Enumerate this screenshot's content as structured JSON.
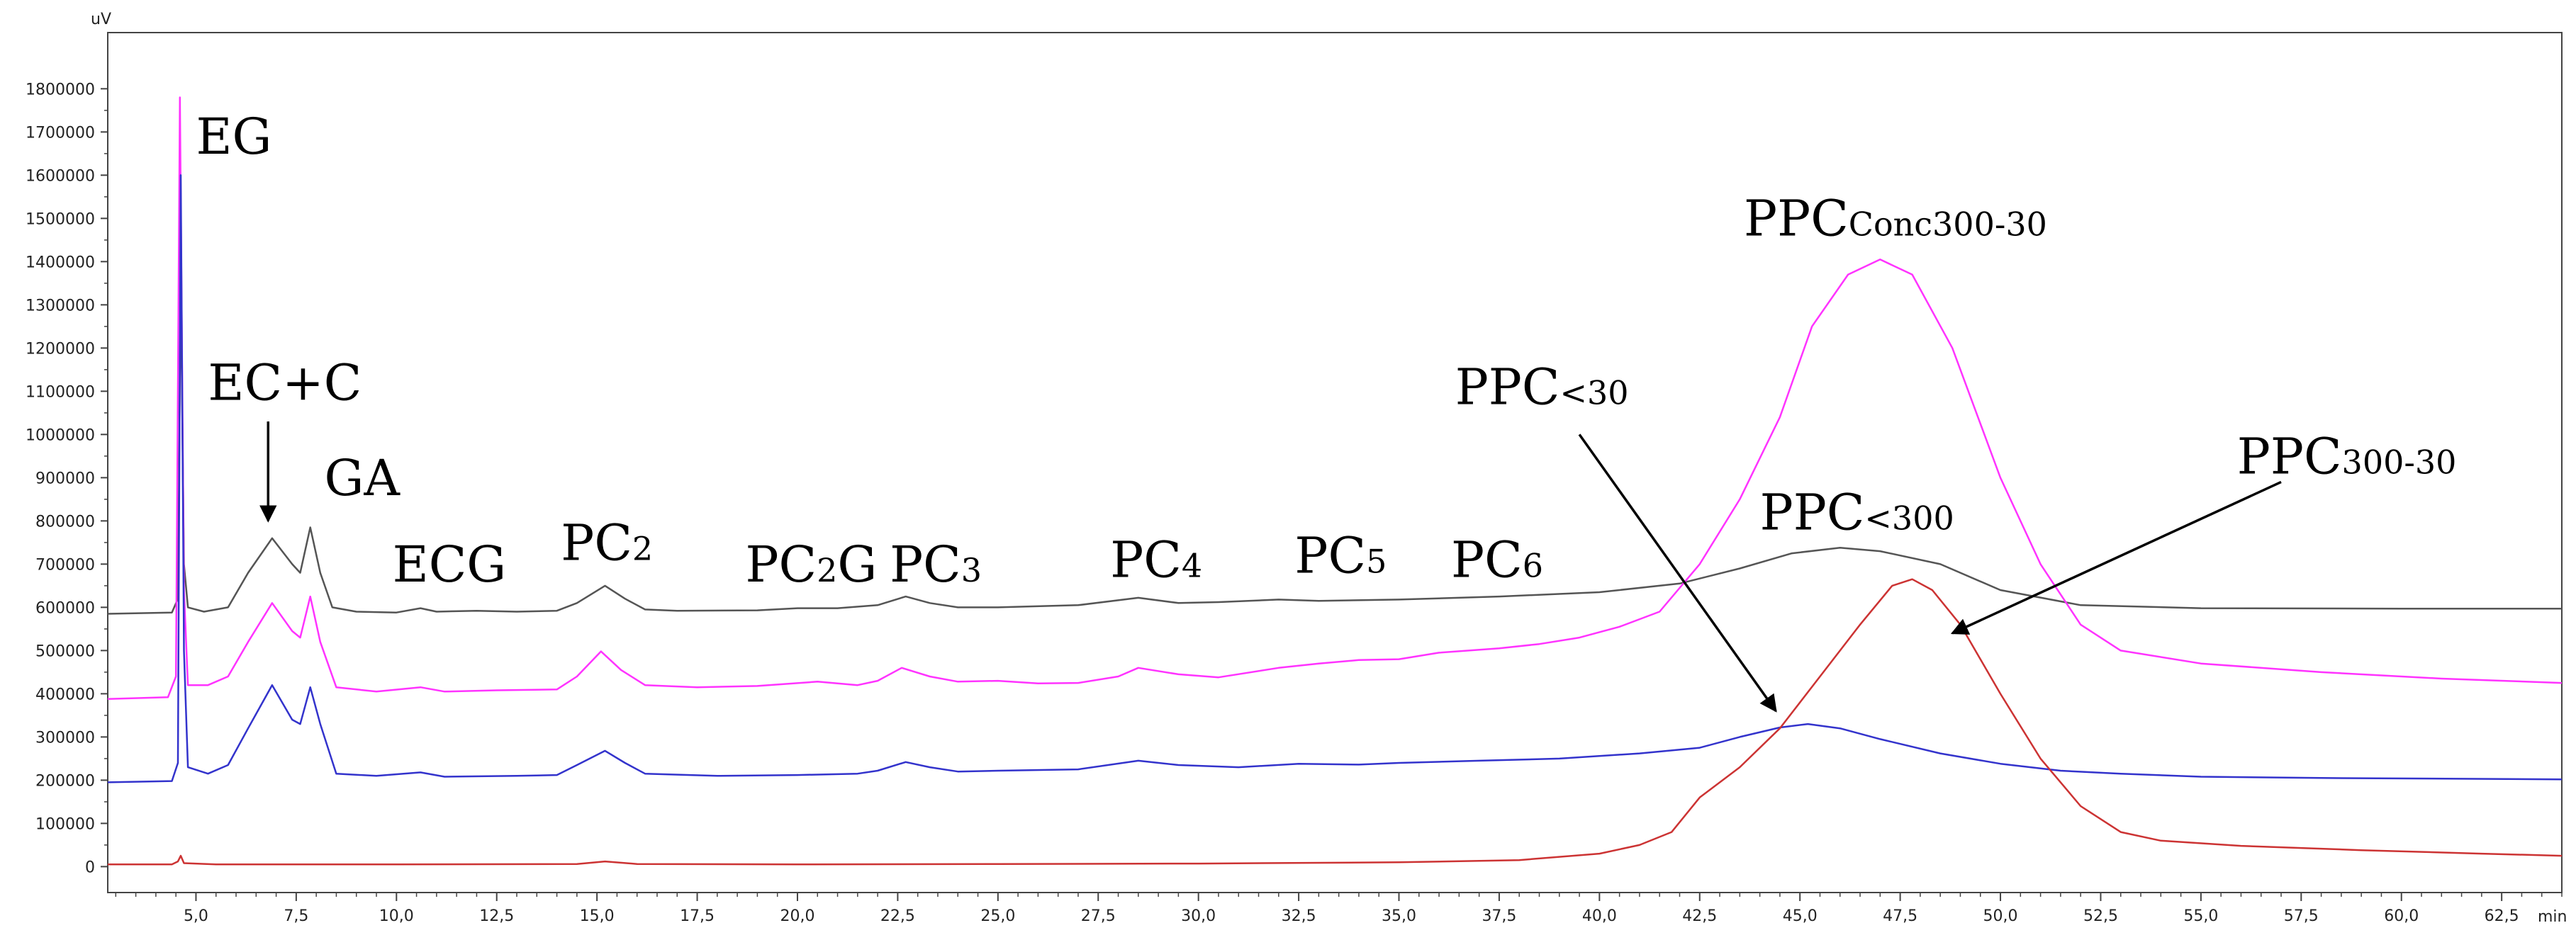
{
  "chart_data": {
    "type": "line",
    "title": "",
    "xlabel": "",
    "ylabel": "",
    "x_unit": "min",
    "y_unit": "uV",
    "xlim": [
      2.8,
      64
    ],
    "ylim": [
      -60000,
      1930000
    ],
    "x_ticks": [
      5.0,
      7.5,
      10.0,
      12.5,
      15.0,
      17.5,
      20.0,
      22.5,
      25.0,
      27.5,
      30.0,
      32.5,
      35.0,
      37.5,
      40.0,
      42.5,
      45.0,
      47.5,
      50.0,
      52.5,
      55.0,
      57.5,
      60.0,
      62.5
    ],
    "x_tick_labels": [
      "5,0",
      "7,5",
      "10,0",
      "12,5",
      "15,0",
      "17,5",
      "20,0",
      "22,5",
      "25,0",
      "27,5",
      "30,0",
      "32,5",
      "35,0",
      "37,5",
      "40,0",
      "42,5",
      "45,0",
      "47,5",
      "50,0",
      "52,5",
      "55,0",
      "57,5",
      "60,0",
      "62,5"
    ],
    "y_ticks": [
      0,
      100000,
      200000,
      300000,
      400000,
      500000,
      600000,
      700000,
      800000,
      900000,
      1000000,
      1100000,
      1200000,
      1300000,
      1400000,
      1500000,
      1600000,
      1700000,
      1800000
    ],
    "y_tick_labels": [
      "0",
      "100000",
      "200000",
      "300000",
      "400000",
      "500000",
      "600000",
      "700000",
      "800000",
      "900000",
      "1000000",
      "1100000",
      "1200000",
      "1300000",
      "1400000",
      "1500000",
      "1600000",
      "1700000",
      "1800000"
    ],
    "grid": false,
    "legend": "none",
    "series": [
      {
        "color": "#555555",
        "points": [
          [
            2.8,
            585000
          ],
          [
            4.4,
            588000
          ],
          [
            4.55,
            620000
          ],
          [
            4.62,
            1360000
          ],
          [
            4.7,
            700000
          ],
          [
            4.8,
            600000
          ],
          [
            5.2,
            590000
          ],
          [
            5.8,
            600000
          ],
          [
            6.3,
            680000
          ],
          [
            6.9,
            760000
          ],
          [
            7.4,
            700000
          ],
          [
            7.6,
            680000
          ],
          [
            7.85,
            785000
          ],
          [
            8.1,
            680000
          ],
          [
            8.4,
            600000
          ],
          [
            9.0,
            590000
          ],
          [
            10.0,
            588000
          ],
          [
            10.6,
            598000
          ],
          [
            11.0,
            590000
          ],
          [
            12.0,
            592000
          ],
          [
            13.0,
            590000
          ],
          [
            14.0,
            592000
          ],
          [
            14.5,
            610000
          ],
          [
            15.2,
            650000
          ],
          [
            15.7,
            620000
          ],
          [
            16.2,
            595000
          ],
          [
            17.0,
            592000
          ],
          [
            19.0,
            593000
          ],
          [
            20.0,
            598000
          ],
          [
            21.0,
            598000
          ],
          [
            22.0,
            605000
          ],
          [
            22.7,
            625000
          ],
          [
            23.3,
            610000
          ],
          [
            24.0,
            600000
          ],
          [
            25.0,
            600000
          ],
          [
            27.0,
            605000
          ],
          [
            28.5,
            622000
          ],
          [
            29.5,
            610000
          ],
          [
            30.5,
            612000
          ],
          [
            32.0,
            618000
          ],
          [
            33.0,
            615000
          ],
          [
            35.0,
            618000
          ],
          [
            37.5,
            625000
          ],
          [
            40.0,
            635000
          ],
          [
            42.0,
            655000
          ],
          [
            43.5,
            690000
          ],
          [
            44.8,
            725000
          ],
          [
            46.0,
            738000
          ],
          [
            47.0,
            730000
          ],
          [
            48.5,
            700000
          ],
          [
            50.0,
            640000
          ],
          [
            52.0,
            605000
          ],
          [
            55.0,
            598000
          ],
          [
            60.0,
            597000
          ],
          [
            64.0,
            597000
          ]
        ]
      },
      {
        "color": "#ff33ff",
        "points": [
          [
            2.8,
            388000
          ],
          [
            4.3,
            392000
          ],
          [
            4.5,
            440000
          ],
          [
            4.6,
            1780000
          ],
          [
            4.7,
            640000
          ],
          [
            4.8,
            420000
          ],
          [
            5.3,
            420000
          ],
          [
            5.8,
            440000
          ],
          [
            6.3,
            520000
          ],
          [
            6.9,
            610000
          ],
          [
            7.4,
            545000
          ],
          [
            7.6,
            530000
          ],
          [
            7.85,
            625000
          ],
          [
            8.1,
            520000
          ],
          [
            8.5,
            415000
          ],
          [
            9.5,
            405000
          ],
          [
            10.6,
            415000
          ],
          [
            11.2,
            405000
          ],
          [
            12.5,
            408000
          ],
          [
            14.0,
            410000
          ],
          [
            14.5,
            440000
          ],
          [
            15.1,
            498000
          ],
          [
            15.6,
            455000
          ],
          [
            16.2,
            420000
          ],
          [
            17.5,
            415000
          ],
          [
            19.0,
            418000
          ],
          [
            20.5,
            428000
          ],
          [
            21.5,
            420000
          ],
          [
            22.0,
            430000
          ],
          [
            22.6,
            460000
          ],
          [
            23.3,
            440000
          ],
          [
            24.0,
            428000
          ],
          [
            25.0,
            430000
          ],
          [
            26.0,
            424000
          ],
          [
            27.0,
            425000
          ],
          [
            28.0,
            440000
          ],
          [
            28.5,
            460000
          ],
          [
            29.5,
            445000
          ],
          [
            30.5,
            438000
          ],
          [
            32.0,
            460000
          ],
          [
            33.0,
            470000
          ],
          [
            34.0,
            478000
          ],
          [
            35.0,
            480000
          ],
          [
            36.0,
            495000
          ],
          [
            37.5,
            505000
          ],
          [
            38.5,
            515000
          ],
          [
            39.5,
            530000
          ],
          [
            40.5,
            555000
          ],
          [
            41.5,
            590000
          ],
          [
            42.5,
            700000
          ],
          [
            43.5,
            850000
          ],
          [
            44.5,
            1040000
          ],
          [
            45.3,
            1250000
          ],
          [
            46.2,
            1370000
          ],
          [
            47.0,
            1405000
          ],
          [
            47.8,
            1370000
          ],
          [
            48.8,
            1200000
          ],
          [
            50.0,
            900000
          ],
          [
            51.0,
            700000
          ],
          [
            52.0,
            560000
          ],
          [
            53.0,
            500000
          ],
          [
            55.0,
            470000
          ],
          [
            58.0,
            450000
          ],
          [
            61.0,
            435000
          ],
          [
            64.0,
            425000
          ]
        ]
      },
      {
        "color": "#3333cc",
        "points": [
          [
            2.8,
            195000
          ],
          [
            4.4,
            198000
          ],
          [
            4.55,
            240000
          ],
          [
            4.62,
            1600000
          ],
          [
            4.7,
            500000
          ],
          [
            4.8,
            230000
          ],
          [
            5.3,
            215000
          ],
          [
            5.8,
            235000
          ],
          [
            6.3,
            320000
          ],
          [
            6.9,
            420000
          ],
          [
            7.4,
            340000
          ],
          [
            7.6,
            330000
          ],
          [
            7.85,
            415000
          ],
          [
            8.1,
            330000
          ],
          [
            8.5,
            215000
          ],
          [
            9.5,
            210000
          ],
          [
            10.6,
            218000
          ],
          [
            11.2,
            208000
          ],
          [
            13.0,
            210000
          ],
          [
            14.0,
            212000
          ],
          [
            14.5,
            235000
          ],
          [
            15.2,
            268000
          ],
          [
            15.7,
            240000
          ],
          [
            16.2,
            215000
          ],
          [
            18.0,
            210000
          ],
          [
            20.0,
            212000
          ],
          [
            21.5,
            215000
          ],
          [
            22.0,
            222000
          ],
          [
            22.7,
            242000
          ],
          [
            23.3,
            230000
          ],
          [
            24.0,
            220000
          ],
          [
            25.0,
            222000
          ],
          [
            27.0,
            225000
          ],
          [
            28.5,
            245000
          ],
          [
            29.5,
            235000
          ],
          [
            31.0,
            230000
          ],
          [
            32.5,
            238000
          ],
          [
            34.0,
            236000
          ],
          [
            35.0,
            240000
          ],
          [
            37.0,
            245000
          ],
          [
            39.0,
            250000
          ],
          [
            41.0,
            262000
          ],
          [
            42.5,
            275000
          ],
          [
            43.5,
            300000
          ],
          [
            44.5,
            322000
          ],
          [
            45.2,
            330000
          ],
          [
            46.0,
            320000
          ],
          [
            47.0,
            295000
          ],
          [
            48.5,
            262000
          ],
          [
            50.0,
            238000
          ],
          [
            51.5,
            222000
          ],
          [
            53.0,
            215000
          ],
          [
            55.0,
            208000
          ],
          [
            58.0,
            205000
          ],
          [
            64.0,
            202000
          ]
        ]
      },
      {
        "color": "#cc3333",
        "points": [
          [
            2.8,
            5000
          ],
          [
            4.4,
            5000
          ],
          [
            4.55,
            12000
          ],
          [
            4.62,
            25000
          ],
          [
            4.7,
            8000
          ],
          [
            5.5,
            5000
          ],
          [
            10.0,
            5000
          ],
          [
            14.5,
            6000
          ],
          [
            15.2,
            12000
          ],
          [
            16.0,
            6000
          ],
          [
            20.0,
            5000
          ],
          [
            25.0,
            6000
          ],
          [
            30.0,
            7000
          ],
          [
            35.0,
            10000
          ],
          [
            38.0,
            15000
          ],
          [
            40.0,
            30000
          ],
          [
            41.0,
            50000
          ],
          [
            41.8,
            80000
          ],
          [
            42.5,
            160000
          ],
          [
            43.5,
            230000
          ],
          [
            44.5,
            320000
          ],
          [
            45.5,
            440000
          ],
          [
            46.5,
            560000
          ],
          [
            47.3,
            650000
          ],
          [
            47.8,
            665000
          ],
          [
            48.3,
            640000
          ],
          [
            49.0,
            560000
          ],
          [
            50.0,
            400000
          ],
          [
            51.0,
            250000
          ],
          [
            52.0,
            140000
          ],
          [
            53.0,
            80000
          ],
          [
            54.0,
            60000
          ],
          [
            56.0,
            48000
          ],
          [
            59.0,
            38000
          ],
          [
            62.0,
            30000
          ],
          [
            64.0,
            25000
          ]
        ]
      }
    ],
    "annotations": [
      {
        "text": "EG",
        "sub": "",
        "x": 5.0,
        "y": 1650000
      },
      {
        "text": "EC+C",
        "sub": "",
        "x": 5.3,
        "y": 1080000
      },
      {
        "text": "GA",
        "sub": "",
        "x": 8.2,
        "y": 860000
      },
      {
        "text": "ECG",
        "sub": "",
        "x": 9.9,
        "y": 660000
      },
      {
        "text": "PC",
        "sub": "2",
        "x": 14.1,
        "y": 710000
      },
      {
        "text": "PC",
        "sub": "2",
        "tail": "G",
        "x": 18.7,
        "y": 660000
      },
      {
        "text": "PC",
        "sub": "3",
        "x": 22.3,
        "y": 660000
      },
      {
        "text": "PC",
        "sub": "4",
        "x": 27.8,
        "y": 670000
      },
      {
        "text": "PC",
        "sub": "5",
        "x": 32.4,
        "y": 680000
      },
      {
        "text": "PC",
        "sub": "6",
        "x": 36.3,
        "y": 670000
      },
      {
        "text": "PPC",
        "sub": "Conc300-30",
        "x": 43.6,
        "y": 1460000
      },
      {
        "text": "PPC",
        "sub": "<30",
        "x": 36.4,
        "y": 1070000
      },
      {
        "text": "PPC",
        "sub": "<300",
        "x": 44.0,
        "y": 780000
      },
      {
        "text": "PPC",
        "sub": "300-30",
        "x": 55.9,
        "y": 910000
      }
    ],
    "arrows": [
      {
        "from": [
          6.8,
          1030000
        ],
        "to": [
          6.8,
          800000
        ]
      },
      {
        "from": [
          39.5,
          1000000
        ],
        "to": [
          44.4,
          360000
        ]
      },
      {
        "from": [
          57.0,
          890000
        ],
        "to": [
          48.8,
          540000
        ]
      }
    ]
  }
}
